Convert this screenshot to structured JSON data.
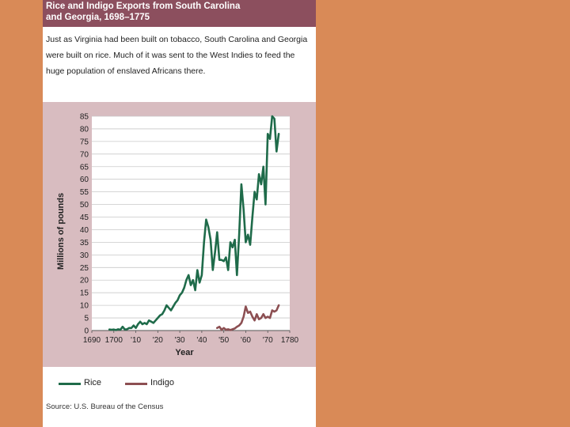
{
  "header": {
    "title_line1": "Rice and Indigo Exports from South Carolina",
    "title_line2": "and Georgia, 1698–1775"
  },
  "intro_text": "Just as Virginia had been built on tobacco, South Carolina and Georgia were built on rice. Much of it was sent to the West Indies to feed the huge population of enslaved Africans there.",
  "source_text": "Source: U.S. Bureau of the Census",
  "colors": {
    "panel_background": "#d8bcc0",
    "title_background": "#8c4f5e",
    "slide_background": "#d98a57"
  },
  "chart_data": {
    "type": "line",
    "xlabel": "Year",
    "ylabel": "Millions of pounds",
    "xlim": [
      1690,
      1780
    ],
    "ylim": [
      0,
      85
    ],
    "x_ticks": [
      1690,
      1700,
      1710,
      1720,
      1730,
      1740,
      1750,
      1760,
      1770,
      1780
    ],
    "x_tick_labels": [
      "1690",
      "1700",
      "'10",
      "'20",
      "'30",
      "'40",
      "'50",
      "'60",
      "'70",
      "1780"
    ],
    "y_ticks": [
      0,
      5,
      10,
      15,
      20,
      25,
      30,
      35,
      40,
      45,
      50,
      55,
      60,
      65,
      70,
      75,
      80,
      85
    ],
    "grid": true,
    "legend_position": "bottom",
    "series": [
      {
        "name": "Rice",
        "color": "#1f6b4a",
        "x": [
          1698,
          1699,
          1700,
          1701,
          1702,
          1703,
          1704,
          1705,
          1706,
          1707,
          1708,
          1709,
          1710,
          1711,
          1712,
          1713,
          1714,
          1715,
          1716,
          1717,
          1718,
          1719,
          1720,
          1721,
          1722,
          1723,
          1724,
          1725,
          1726,
          1727,
          1728,
          1729,
          1730,
          1731,
          1732,
          1733,
          1734,
          1735,
          1736,
          1737,
          1738,
          1739,
          1740,
          1741,
          1742,
          1743,
          1744,
          1745,
          1746,
          1747,
          1748,
          1749,
          1750,
          1751,
          1752,
          1753,
          1754,
          1755,
          1756,
          1757,
          1758,
          1759,
          1760,
          1761,
          1762,
          1763,
          1764,
          1765,
          1766,
          1767,
          1768,
          1769,
          1770,
          1771,
          1772,
          1773,
          1774,
          1775
        ],
        "values": [
          0.4,
          0.3,
          0.4,
          0.2,
          0.5,
          0.3,
          1.5,
          0.4,
          0.5,
          1.0,
          1.0,
          2.0,
          1.0,
          2.5,
          3.5,
          2.5,
          3.0,
          2.5,
          4.0,
          3.5,
          3.0,
          4.0,
          5.0,
          6.0,
          6.5,
          8.0,
          10.0,
          9.0,
          8.0,
          9.5,
          11.0,
          12.0,
          14.0,
          15.0,
          17.0,
          20.0,
          22.0,
          18.0,
          20.0,
          16.0,
          24.0,
          19.0,
          22.0,
          35.0,
          44.0,
          41.0,
          36.0,
          24.0,
          31.0,
          39.0,
          28.0,
          28.0,
          27.5,
          29.0,
          24.0,
          35.0,
          33.0,
          36.0,
          22.0,
          38.0,
          58.0,
          48.0,
          35.0,
          38.0,
          34.0,
          45.0,
          55.0,
          52.0,
          62.0,
          58.0,
          65.0,
          50.0,
          78.0,
          76.0,
          85.0,
          84.0,
          71.0,
          78.0
        ]
      },
      {
        "name": "Indigo",
        "color": "#8c4f52",
        "x": [
          1747,
          1748,
          1749,
          1750,
          1751,
          1752,
          1753,
          1754,
          1755,
          1756,
          1757,
          1758,
          1759,
          1760,
          1761,
          1762,
          1763,
          1764,
          1765,
          1766,
          1767,
          1768,
          1769,
          1770,
          1771,
          1772,
          1773,
          1774,
          1775
        ],
        "values": [
          1.0,
          1.5,
          0.3,
          1.0,
          0.3,
          0.5,
          0.2,
          0.5,
          0.8,
          1.5,
          2.0,
          3.0,
          5.5,
          9.5,
          7.0,
          7.5,
          5.5,
          4.0,
          6.5,
          4.5,
          5.0,
          6.5,
          5.0,
          5.5,
          5.0,
          8.0,
          7.5,
          8.0,
          10.0
        ]
      }
    ]
  }
}
